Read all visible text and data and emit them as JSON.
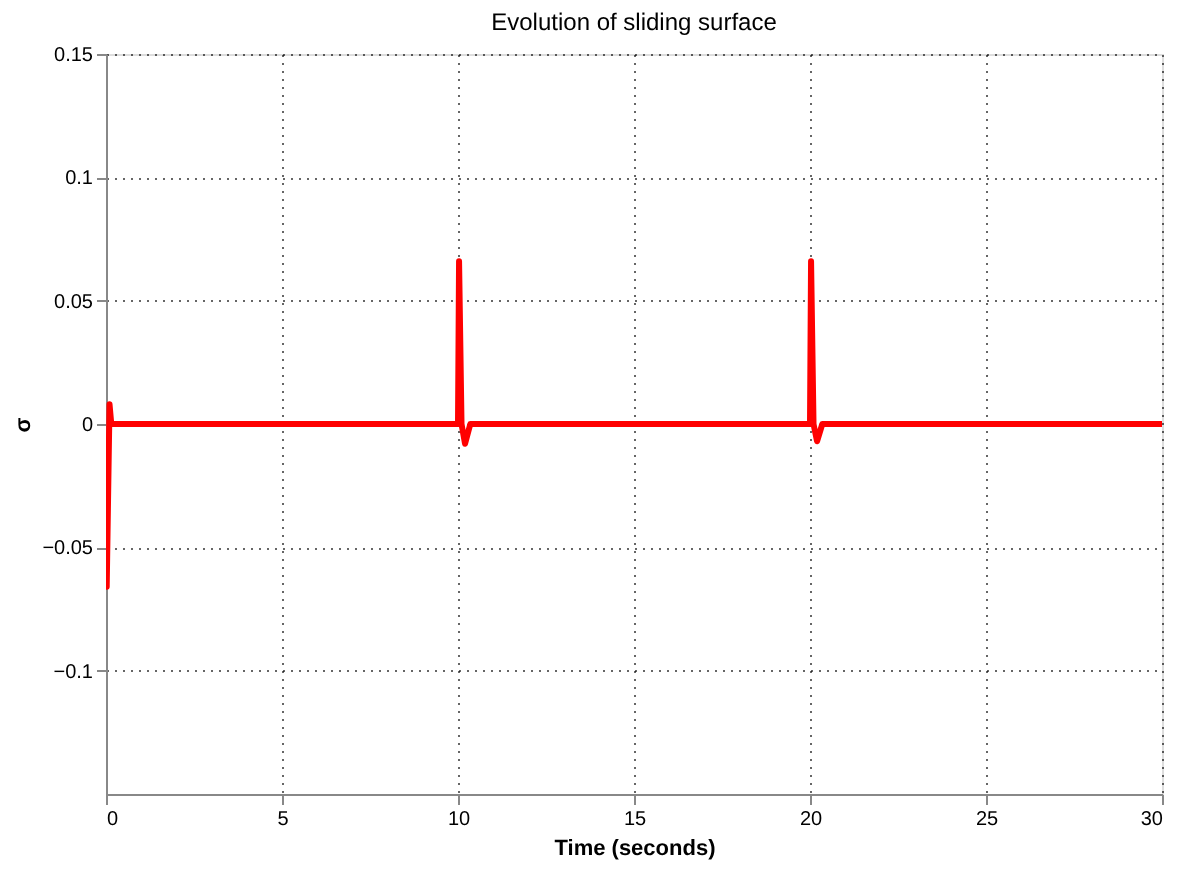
{
  "chart_data": {
    "type": "line",
    "title": "Evolution of sliding surface",
    "xlabel": "Time (seconds)",
    "ylabel": "σ",
    "series": [
      {
        "color": "#ff0000",
        "x": [
          0,
          0.02,
          0.1,
          0.15,
          0.3,
          10,
          10.03,
          10.1,
          10.2,
          10.35,
          20,
          20.03,
          20.1,
          20.2,
          20.35,
          30
        ],
        "values": [
          -0.066,
          -0.066,
          0.008,
          0.0,
          0.0,
          0.0,
          0.066,
          0.0,
          -0.008,
          0.0,
          0.0,
          0.066,
          0.0,
          -0.007,
          0.0,
          0.0
        ]
      }
    ],
    "xlim": [
      0,
      30
    ],
    "xticks": [
      0,
      5,
      10,
      15,
      20,
      25,
      30
    ],
    "ylim": [
      -0.15,
      0.15
    ],
    "yticks": [
      -0.1,
      -0.05,
      0,
      0.05,
      0.1,
      0.15
    ],
    "grid": true,
    "line_style": "solid",
    "marker": "none"
  }
}
